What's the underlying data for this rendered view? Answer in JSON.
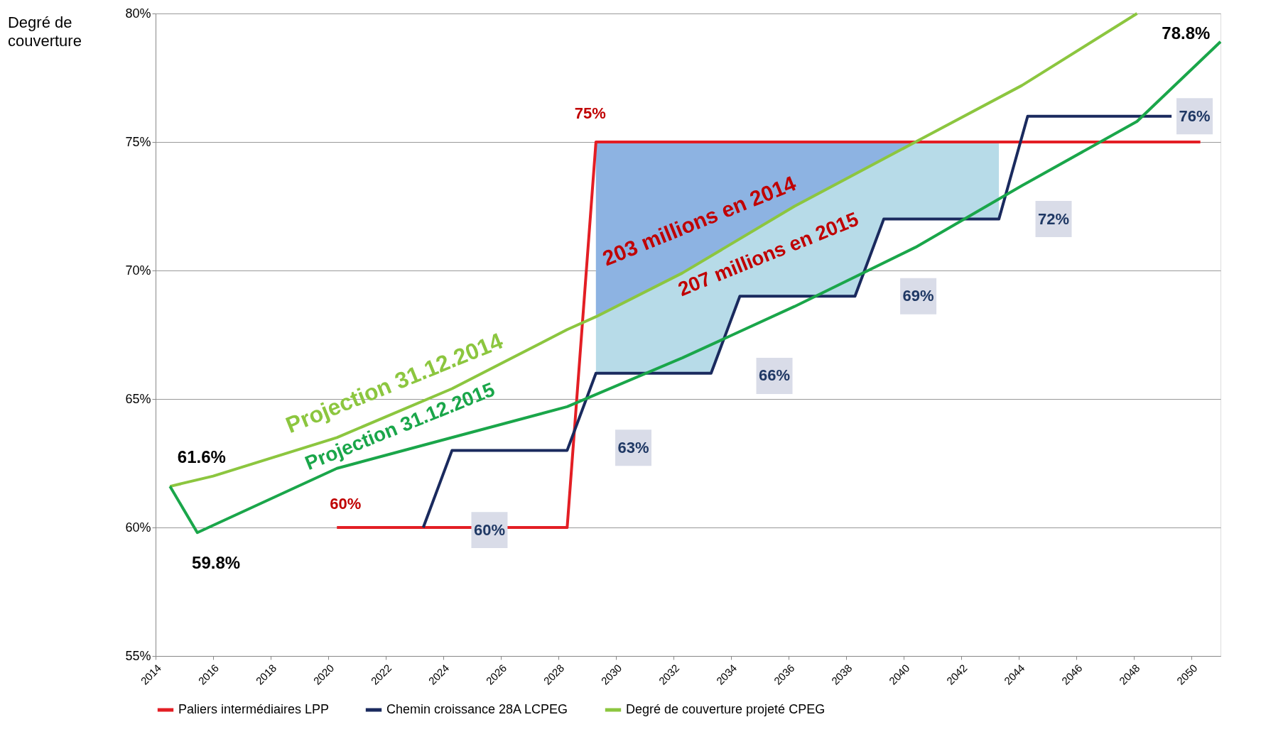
{
  "chart_data": {
    "type": "line",
    "ylabel": "Degré de couverture",
    "xlim": [
      2014,
      2051
    ],
    "xticks": [
      2014,
      2016,
      2018,
      2020,
      2022,
      2024,
      2026,
      2028,
      2030,
      2032,
      2034,
      2036,
      2038,
      2040,
      2042,
      2044,
      2046,
      2048,
      2050
    ],
    "ylim": [
      55,
      80
    ],
    "yticks": [
      {
        "value": 55,
        "label": "55%"
      },
      {
        "value": 60,
        "label": "60%"
      },
      {
        "value": 65,
        "label": "65%"
      },
      {
        "value": 70,
        "label": "70%"
      },
      {
        "value": 75,
        "label": "75%"
      },
      {
        "value": 80,
        "label": "80%"
      }
    ],
    "grid": "y",
    "legend": "bottom",
    "series": [
      {
        "name": "Paliers intermédiaires LPP",
        "color": "#e31e24",
        "x": [
          2020.3,
          2028.3,
          2029.3,
          2050.3
        ],
        "values": [
          60,
          60,
          75,
          75
        ]
      },
      {
        "name": "Chemin croissance 28A LCPEG",
        "color": "#1a2a5e",
        "x": [
          2023.3,
          2024.3,
          2028.3,
          2029.3,
          2033.3,
          2034.3,
          2038.3,
          2039.3,
          2043.3,
          2044.3,
          2049.3
        ],
        "values": [
          60,
          63,
          63,
          66,
          66,
          69,
          69,
          72,
          72,
          76,
          76
        ],
        "lower": [
          null,
          null,
          null,
          66,
          66,
          69,
          69,
          72,
          72,
          null,
          null
        ],
        "upper": [
          null,
          null,
          null,
          75,
          75,
          75,
          75,
          75,
          75,
          null,
          null
        ]
      },
      {
        "name": "Degré de couverture projeté CPEG",
        "color": "#8cc63f",
        "x": [
          2014.5,
          2016,
          2020.3,
          2024.3,
          2028.3,
          2029.3,
          2032.3,
          2036.2,
          2040.4,
          2044.1,
          2048.1
        ],
        "values": [
          61.6,
          62.0,
          63.5,
          65.4,
          67.7,
          68.2,
          69.9,
          72.5,
          75.0,
          77.2,
          80
        ],
        "lower": [
          null,
          null,
          null,
          null,
          null,
          68.2,
          69.9,
          72.5,
          75.0,
          null,
          null
        ],
        "upper": [
          null,
          null,
          null,
          null,
          null,
          75,
          75,
          75,
          75,
          null,
          null
        ]
      },
      {
        "color": "#1aa64a",
        "x": [
          2014.5,
          2015.45,
          2020.3,
          2024.3,
          2028.3,
          2032.3,
          2036.2,
          2040.4,
          2044.1,
          2048.1,
          2051
        ],
        "values": [
          61.6,
          59.8,
          62.3,
          63.5,
          64.7,
          66.6,
          68.6,
          70.9,
          73.3,
          75.8,
          78.9
        ]
      }
    ],
    "annotations": [
      "75%",
      "60%",
      "60%",
      "63%",
      "66%",
      "69%",
      "72%",
      "76%",
      "61.6%",
      "59.8%",
      "78.8%",
      "Projection 31.12.2014",
      "Projection 31.12.2015",
      "203 millions en 2014",
      "207 millions en 2015"
    ]
  }
}
